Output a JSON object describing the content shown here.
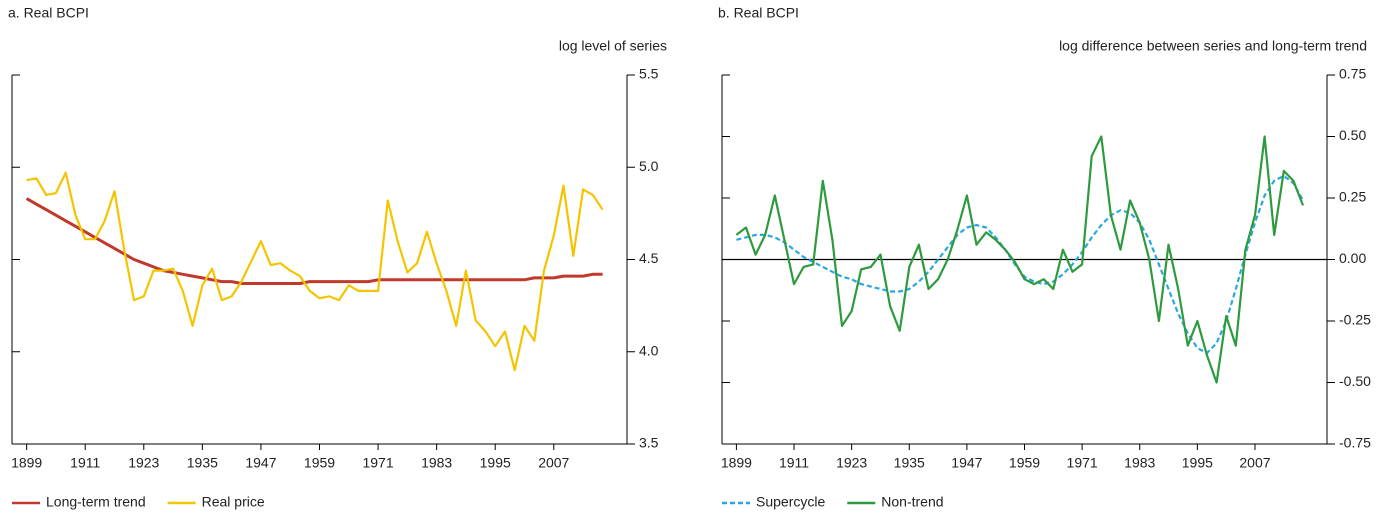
{
  "chart_data": [
    {
      "type": "line",
      "title": "a. Real BCPI",
      "y_label": "log level of series",
      "x": [
        1899,
        1901,
        1903,
        1905,
        1907,
        1909,
        1911,
        1913,
        1915,
        1917,
        1919,
        1921,
        1923,
        1925,
        1927,
        1929,
        1931,
        1933,
        1935,
        1937,
        1939,
        1941,
        1943,
        1945,
        1947,
        1949,
        1951,
        1953,
        1955,
        1957,
        1959,
        1961,
        1963,
        1965,
        1967,
        1969,
        1971,
        1973,
        1975,
        1977,
        1979,
        1981,
        1983,
        1985,
        1987,
        1989,
        1991,
        1993,
        1995,
        1997,
        1999,
        2001,
        2003,
        2005,
        2007,
        2009,
        2011,
        2013,
        2015,
        2017
      ],
      "xlim": [
        1896,
        2022
      ],
      "xticks": [
        1899,
        1911,
        1923,
        1935,
        1947,
        1959,
        1971,
        1983,
        1995,
        2007
      ],
      "ylim": [
        3.5,
        5.5
      ],
      "yticks": [
        3.5,
        {
          "value": 4,
          "label": "4.0"
        },
        4.5,
        {
          "value": 5,
          "label": "5.0"
        },
        5.5
      ],
      "series": [
        {
          "name": "Long-term trend",
          "color": "#c0392b",
          "linestyle": "solid",
          "values": [
            4.83,
            4.8,
            4.77,
            4.74,
            4.71,
            4.68,
            4.65,
            4.62,
            4.59,
            4.56,
            4.53,
            4.5,
            4.48,
            4.46,
            4.44,
            4.43,
            4.42,
            4.41,
            4.4,
            4.39,
            4.38,
            4.38,
            4.37,
            4.37,
            4.37,
            4.37,
            4.37,
            4.37,
            4.37,
            4.38,
            4.38,
            4.38,
            4.38,
            4.38,
            4.38,
            4.38,
            4.39,
            4.39,
            4.39,
            4.39,
            4.39,
            4.39,
            4.39,
            4.39,
            4.39,
            4.39,
            4.39,
            4.39,
            4.39,
            4.39,
            4.39,
            4.39,
            4.4,
            4.4,
            4.4,
            4.41,
            4.41,
            4.41,
            4.42,
            4.42
          ]
        },
        {
          "name": "Real price",
          "color": "#f5c400",
          "linestyle": "solid",
          "values": [
            4.93,
            4.94,
            4.85,
            4.86,
            4.97,
            4.74,
            4.61,
            4.61,
            4.71,
            4.87,
            4.55,
            4.28,
            4.3,
            4.44,
            4.44,
            4.45,
            4.33,
            4.14,
            4.36,
            4.45,
            4.28,
            4.3,
            4.38,
            4.49,
            4.6,
            4.47,
            4.48,
            4.44,
            4.41,
            4.33,
            4.29,
            4.3,
            4.28,
            4.36,
            4.33,
            4.33,
            4.33,
            4.82,
            4.6,
            4.43,
            4.48,
            4.65,
            4.48,
            4.33,
            4.14,
            4.44,
            4.17,
            4.11,
            4.03,
            4.11,
            3.9,
            4.14,
            4.06,
            4.44,
            4.63,
            4.9,
            4.52,
            4.88,
            4.85,
            4.77
          ]
        }
      ]
    },
    {
      "type": "line",
      "title": "b. Real BCPI",
      "y_label": "log difference between series and long-term trend",
      "x": [
        1899,
        1901,
        1903,
        1905,
        1907,
        1909,
        1911,
        1913,
        1915,
        1917,
        1919,
        1921,
        1923,
        1925,
        1927,
        1929,
        1931,
        1933,
        1935,
        1937,
        1939,
        1941,
        1943,
        1945,
        1947,
        1949,
        1951,
        1953,
        1955,
        1957,
        1959,
        1961,
        1963,
        1965,
        1967,
        1969,
        1971,
        1973,
        1975,
        1977,
        1979,
        1981,
        1983,
        1985,
        1987,
        1989,
        1991,
        1993,
        1995,
        1997,
        1999,
        2001,
        2003,
        2005,
        2007,
        2009,
        2011,
        2013,
        2015,
        2017
      ],
      "xlim": [
        1896,
        2022
      ],
      "xticks": [
        1899,
        1911,
        1923,
        1935,
        1947,
        1959,
        1971,
        1983,
        1995,
        2007
      ],
      "ylim": [
        -0.75,
        0.75
      ],
      "yticks": [
        {
          "value": -0.75,
          "label": "-0.75"
        },
        {
          "value": -0.5,
          "label": "-0.50"
        },
        {
          "value": -0.25,
          "label": "-0.25"
        },
        {
          "value": 0,
          "label": "0.00"
        },
        {
          "value": 0.25,
          "label": "0.25"
        },
        {
          "value": 0.5,
          "label": "0.50"
        },
        {
          "value": 0.75,
          "label": "0.75"
        }
      ],
      "reference_line": 0,
      "series": [
        {
          "name": "Supercycle",
          "color": "#29a8e0",
          "linestyle": "dashed",
          "values": [
            0.08,
            0.09,
            0.1,
            0.1,
            0.09,
            0.07,
            0.04,
            0.01,
            -0.01,
            -0.03,
            -0.05,
            -0.07,
            -0.08,
            -0.1,
            -0.11,
            -0.12,
            -0.13,
            -0.13,
            -0.12,
            -0.09,
            -0.05,
            0.0,
            0.05,
            0.1,
            0.13,
            0.14,
            0.13,
            0.09,
            0.04,
            -0.02,
            -0.07,
            -0.09,
            -0.1,
            -0.09,
            -0.06,
            -0.02,
            0.03,
            0.09,
            0.14,
            0.18,
            0.2,
            0.19,
            0.15,
            0.08,
            -0.02,
            -0.12,
            -0.22,
            -0.3,
            -0.36,
            -0.38,
            -0.34,
            -0.25,
            -0.12,
            0.02,
            0.15,
            0.26,
            0.32,
            0.34,
            0.31,
            0.24
          ]
        },
        {
          "name": "Non-trend",
          "color": "#2e9a3e",
          "linestyle": "solid",
          "values": [
            0.1,
            0.13,
            0.02,
            0.1,
            0.26,
            0.08,
            -0.1,
            -0.03,
            -0.02,
            0.32,
            0.08,
            -0.27,
            -0.21,
            -0.04,
            -0.03,
            0.02,
            -0.19,
            -0.29,
            -0.03,
            0.06,
            -0.12,
            -0.08,
            0.0,
            0.12,
            0.26,
            0.06,
            0.11,
            0.08,
            0.04,
            -0.01,
            -0.08,
            -0.1,
            -0.08,
            -0.12,
            0.04,
            -0.05,
            -0.02,
            0.42,
            0.5,
            0.18,
            0.04,
            0.24,
            0.15,
            0.0,
            -0.25,
            0.06,
            -0.12,
            -0.35,
            -0.25,
            -0.39,
            -0.5,
            -0.23,
            -0.35,
            0.04,
            0.18,
            0.5,
            0.1,
            0.36,
            0.32,
            0.22
          ]
        }
      ]
    }
  ]
}
